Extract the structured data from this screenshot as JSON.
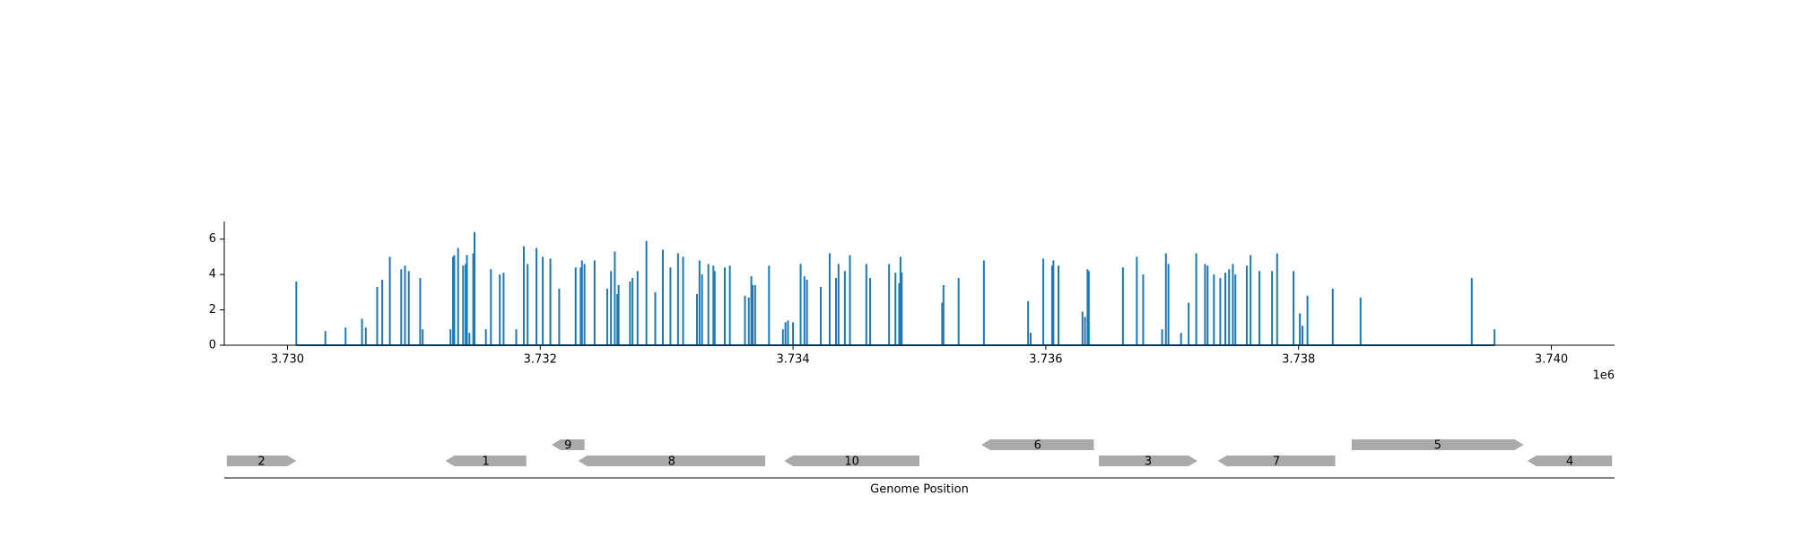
{
  "chart_data": [
    {
      "type": "bar",
      "x": [
        3730070,
        3730300,
        3730460,
        3730590,
        3730620,
        3730710,
        3730750,
        3730810,
        3730900,
        3730930,
        3730960,
        3731050,
        3731070,
        3731290,
        3731310,
        3731320,
        3731350,
        3731390,
        3731410,
        3731420,
        3731440,
        3731470,
        3731480,
        3731570,
        3731610,
        3731680,
        3731710,
        3731810,
        3731870,
        3731900,
        3731970,
        3732020,
        3732080,
        3732150,
        3732280,
        3732320,
        3732330,
        3732350,
        3732430,
        3732530,
        3732560,
        3732590,
        3732610,
        3732620,
        3732710,
        3732730,
        3732770,
        3732840,
        3732910,
        3732970,
        3733030,
        3733090,
        3733130,
        3733240,
        3733260,
        3733280,
        3733330,
        3733370,
        3733380,
        3733460,
        3733500,
        3733620,
        3733650,
        3733670,
        3733680,
        3733700,
        3733810,
        3733920,
        3733940,
        3733960,
        3734000,
        3734060,
        3734090,
        3734110,
        3734220,
        3734290,
        3734340,
        3734360,
        3734410,
        3734450,
        3734580,
        3734610,
        3734760,
        3734810,
        3734840,
        3734850,
        3734860,
        3735180,
        3735190,
        3735310,
        3735510,
        3735860,
        3735880,
        3735980,
        3736050,
        3736060,
        3736100,
        3736290,
        3736310,
        3736330,
        3736340,
        3736610,
        3736720,
        3736770,
        3736920,
        3736950,
        3736970,
        3737070,
        3737130,
        3737190,
        3737260,
        3737280,
        3737330,
        3737380,
        3737420,
        3737450,
        3737480,
        3737500,
        3737590,
        3737620,
        3737690,
        3737790,
        3737830,
        3737960,
        3738010,
        3738030,
        3738070,
        3738270,
        3738490,
        3739370,
        3739550
      ],
      "values": [
        3.6,
        0.8,
        1.0,
        1.5,
        1.0,
        3.3,
        3.7,
        5.0,
        4.3,
        4.5,
        4.2,
        3.8,
        0.9,
        0.9,
        5.0,
        5.1,
        5.5,
        4.5,
        4.6,
        5.1,
        0.7,
        5.2,
        6.4,
        0.9,
        4.3,
        4.0,
        4.1,
        0.9,
        5.6,
        4.6,
        5.5,
        5.0,
        4.9,
        3.2,
        4.4,
        4.4,
        4.8,
        4.6,
        4.8,
        3.2,
        4.2,
        5.3,
        2.9,
        3.4,
        3.6,
        3.8,
        4.2,
        5.9,
        3.0,
        5.4,
        4.4,
        5.2,
        5.0,
        2.9,
        4.8,
        4.0,
        4.6,
        4.5,
        4.2,
        4.4,
        4.5,
        2.8,
        2.7,
        3.9,
        3.4,
        3.4,
        4.5,
        0.9,
        1.3,
        1.4,
        1.3,
        4.6,
        3.9,
        3.7,
        3.3,
        5.2,
        3.8,
        4.6,
        4.2,
        5.1,
        4.6,
        3.8,
        4.6,
        4.1,
        3.5,
        5.0,
        4.1,
        2.4,
        3.4,
        3.8,
        4.8,
        2.5,
        0.7,
        4.9,
        4.5,
        4.8,
        4.5,
        1.9,
        1.6,
        4.3,
        4.2,
        4.4,
        5.0,
        4.0,
        0.9,
        5.2,
        4.6,
        0.7,
        2.4,
        5.2,
        4.6,
        4.5,
        4.0,
        3.8,
        4.1,
        4.3,
        4.6,
        4.0,
        4.5,
        5.1,
        4.2,
        4.2,
        5.2,
        4.2,
        1.8,
        1.1,
        2.8,
        3.2,
        2.7,
        3.8,
        0.9
      ],
      "color": "#1f77b4",
      "xlim": [
        3729500,
        3740500
      ],
      "xticks": [
        {
          "value": 3730000,
          "label": "3.730"
        },
        {
          "value": 3732000,
          "label": "3.732"
        },
        {
          "value": 3734000,
          "label": "3.734"
        },
        {
          "value": 3736000,
          "label": "3.736"
        },
        {
          "value": 3738000,
          "label": "3.738"
        },
        {
          "value": 3740000,
          "label": "3.740"
        }
      ],
      "x_offset_label": "1e6",
      "ylim": [
        0,
        7
      ],
      "yticks": [
        0,
        2,
        4,
        6
      ]
    },
    {
      "type": "gene_track",
      "xlabel": "Genome Position",
      "xlim": [
        3729500,
        3740500
      ],
      "color": "#aaaaaa",
      "genes": [
        {
          "label": "2",
          "start": 3729520,
          "end": 3730070,
          "strand": 1
        },
        {
          "label": "1",
          "start": 3731250,
          "end": 3731890,
          "strand": -1
        },
        {
          "label": "8",
          "start": 3732300,
          "end": 3733780,
          "strand": -1
        },
        {
          "label": "10",
          "start": 3733930,
          "end": 3735000,
          "strand": -1
        },
        {
          "label": "3",
          "start": 3736420,
          "end": 3737200,
          "strand": 1
        },
        {
          "label": "7",
          "start": 3737360,
          "end": 3738290,
          "strand": -1
        },
        {
          "label": "4",
          "start": 3739810,
          "end": 3740480,
          "strand": -1
        },
        {
          "label": "9",
          "start": 3732090,
          "end": 3732350,
          "strand": -1
        },
        {
          "label": "6",
          "start": 3735490,
          "end": 3736380,
          "strand": -1
        },
        {
          "label": "5",
          "start": 3738420,
          "end": 3739780,
          "strand": 1
        }
      ]
    }
  ]
}
